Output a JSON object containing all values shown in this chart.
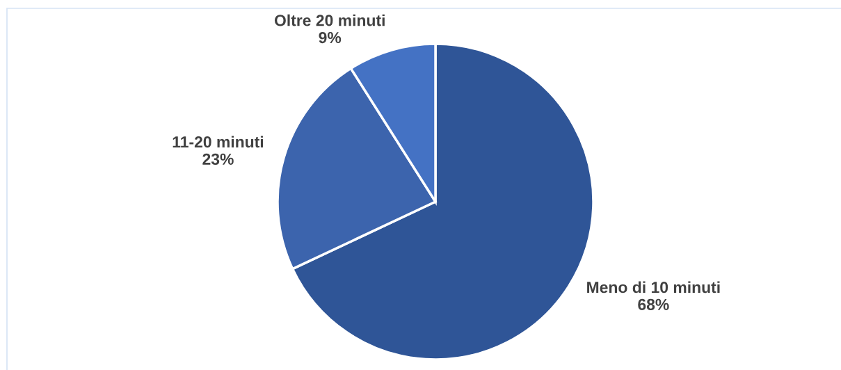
{
  "chart_data": {
    "type": "pie",
    "categories": [
      "Meno di 10 minuti",
      "11-20 minuti",
      "Oltre 20 minuti"
    ],
    "values": [
      68,
      23,
      9
    ],
    "colors": [
      "#2f5597",
      "#3c64ad",
      "#4472c4"
    ],
    "value_labels": [
      "68%",
      "23%",
      "9%"
    ]
  }
}
